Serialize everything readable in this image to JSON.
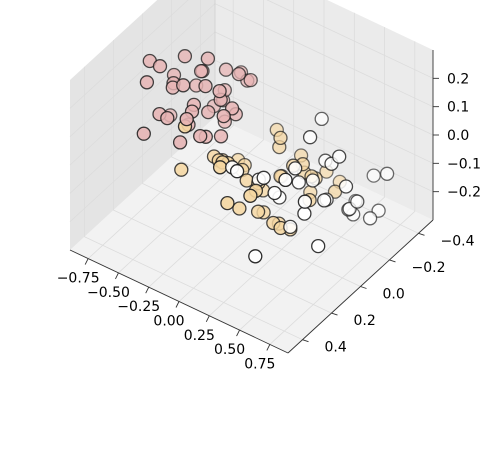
{
  "chart_data": {
    "type": "scatter",
    "projection": "3d",
    "title": "",
    "xlabel": "",
    "ylabel": "",
    "zlabel": "",
    "grid": true,
    "legend": "none",
    "xlim": [
      -0.9,
      0.9
    ],
    "ylim": [
      -0.5,
      0.5
    ],
    "zlim": [
      -0.3,
      0.3
    ],
    "x_ticks": [
      -0.75,
      -0.5,
      -0.25,
      0.0,
      0.25,
      0.5,
      0.75
    ],
    "x_tick_labels": [
      "−0.75",
      "−0.50",
      "−0.25",
      "0.00",
      "0.25",
      "0.50",
      "0.75"
    ],
    "y_ticks": [
      -0.4,
      -0.2,
      0.0,
      0.2,
      0.4
    ],
    "y_tick_labels": [
      "−0.4",
      "−0.2",
      "0.0",
      "0.2",
      "0.4"
    ],
    "z_ticks": [
      -0.2,
      -0.1,
      0.0,
      0.1,
      0.2
    ],
    "z_tick_labels": [
      "−0.2",
      "−0.1",
      "0.0",
      "0.1",
      "0.2"
    ],
    "colors": {
      "cluster_a": "#e7b3b3",
      "cluster_b": "#f5d6a0",
      "cluster_c": "#ffffff",
      "marker_edge": "#1a1a1a",
      "pane": "#f2f2f2",
      "grid": "#dcdcdc"
    },
    "series": [
      {
        "color": "#e7b3b3",
        "points": [
          [
            -0.78,
            0.05,
            0.18
          ],
          [
            -0.72,
            0.12,
            0.15
          ],
          [
            -0.7,
            -0.05,
            0.1
          ],
          [
            -0.66,
            0.08,
            0.2
          ],
          [
            -0.62,
            0.02,
            0.12
          ],
          [
            -0.6,
            -0.12,
            0.05
          ],
          [
            -0.58,
            0.15,
            0.08
          ],
          [
            -0.55,
            0.0,
            0.22
          ],
          [
            -0.53,
            0.1,
            0.16
          ],
          [
            -0.5,
            -0.08,
            0.14
          ],
          [
            -0.48,
            0.18,
            0.1
          ],
          [
            -0.46,
            0.05,
            0.02
          ],
          [
            -0.44,
            -0.02,
            0.18
          ],
          [
            -0.42,
            0.12,
            0.2
          ],
          [
            -0.4,
            -0.15,
            0.06
          ],
          [
            -0.38,
            0.08,
            0.12
          ],
          [
            -0.36,
            0.0,
            0.25
          ],
          [
            -0.35,
            0.2,
            0.05
          ],
          [
            -0.33,
            -0.1,
            0.17
          ],
          [
            -0.31,
            0.04,
            0.09
          ],
          [
            -0.3,
            0.16,
            0.15
          ],
          [
            -0.28,
            -0.05,
            0.02
          ],
          [
            -0.26,
            0.1,
            0.22
          ],
          [
            -0.25,
            -0.18,
            0.11
          ],
          [
            -0.23,
            0.02,
            0.14
          ],
          [
            -0.21,
            0.14,
            0.07
          ],
          [
            -0.2,
            -0.08,
            0.19
          ],
          [
            -0.18,
            0.06,
            0.04
          ],
          [
            -0.16,
            0.22,
            0.12
          ],
          [
            -0.15,
            -0.12,
            0.16
          ],
          [
            -0.13,
            0.0,
            0.1
          ],
          [
            -0.12,
            0.12,
            0.24
          ],
          [
            -0.55,
            -0.2,
            -0.05
          ],
          [
            -0.45,
            -0.18,
            0.0
          ],
          [
            -0.65,
            0.2,
            0.02
          ],
          [
            -0.1,
            0.05,
            0.15
          ],
          [
            -0.35,
            -0.22,
            0.1
          ],
          [
            -0.05,
            0.15,
            0.18
          ],
          [
            -0.85,
            -0.15,
            -0.12
          ],
          [
            -0.2,
            0.28,
            0.2
          ]
        ]
      },
      {
        "color": "#f5d6a0",
        "points": [
          [
            -0.3,
            -0.05,
            -0.12
          ],
          [
            -0.25,
            0.05,
            -0.05
          ],
          [
            -0.2,
            -0.12,
            -0.15
          ],
          [
            -0.15,
            0.1,
            -0.02
          ],
          [
            -0.1,
            -0.02,
            -0.1
          ],
          [
            -0.05,
            0.12,
            0.0
          ],
          [
            0.0,
            -0.08,
            -0.18
          ],
          [
            0.02,
            0.05,
            -0.08
          ],
          [
            0.05,
            -0.15,
            -0.05
          ],
          [
            0.08,
            0.15,
            -0.12
          ],
          [
            0.1,
            0.0,
            -0.2
          ],
          [
            0.12,
            -0.1,
            0.02
          ],
          [
            0.15,
            0.08,
            -0.15
          ],
          [
            0.18,
            -0.05,
            -0.08
          ],
          [
            0.2,
            0.12,
            -0.02
          ],
          [
            0.22,
            -0.18,
            -0.12
          ],
          [
            0.25,
            0.02,
            -0.2
          ],
          [
            0.28,
            -0.12,
            -0.05
          ],
          [
            0.3,
            0.1,
            -0.15
          ],
          [
            0.32,
            -0.02,
            0.0
          ],
          [
            0.35,
            -0.15,
            -0.1
          ],
          [
            0.38,
            0.05,
            -0.18
          ],
          [
            0.4,
            -0.08,
            -0.05
          ],
          [
            0.42,
            0.15,
            -0.12
          ],
          [
            -0.05,
            -0.25,
            -0.22
          ],
          [
            0.05,
            -0.3,
            -0.15
          ],
          [
            0.15,
            -0.28,
            -0.25
          ],
          [
            -0.4,
            0.15,
            -0.08
          ],
          [
            -0.35,
            -0.2,
            -0.2
          ],
          [
            0.0,
            0.2,
            0.05
          ],
          [
            0.1,
            0.25,
            -0.05
          ],
          [
            0.3,
            0.22,
            0.02
          ],
          [
            0.45,
            -0.2,
            -0.15
          ],
          [
            -0.15,
            -0.3,
            -0.1
          ],
          [
            0.2,
            -0.35,
            -0.2
          ],
          [
            0.48,
            0.0,
            -0.08
          ],
          [
            0.1,
            0.3,
            0.1
          ],
          [
            -0.25,
            0.25,
            0.15
          ],
          [
            0.35,
            0.3,
            0.05
          ],
          [
            0.25,
            -0.4,
            -0.25
          ]
        ]
      },
      {
        "color": "#ffffff",
        "points": [
          [
            0.3,
            0.2,
            0.05
          ],
          [
            0.35,
            0.1,
            -0.05
          ],
          [
            0.4,
            0.25,
            0.1
          ],
          [
            0.45,
            0.05,
            0.0
          ],
          [
            0.5,
            0.15,
            -0.1
          ],
          [
            0.55,
            -0.05,
            0.05
          ],
          [
            0.6,
            0.2,
            0.15
          ],
          [
            0.62,
            0.0,
            -0.05
          ],
          [
            0.65,
            0.12,
            0.08
          ],
          [
            0.68,
            -0.1,
            -0.12
          ],
          [
            0.7,
            0.22,
            0.02
          ],
          [
            0.72,
            0.05,
            0.12
          ],
          [
            0.75,
            -0.05,
            -0.08
          ],
          [
            0.78,
            0.15,
            0.05
          ],
          [
            0.8,
            -0.15,
            -0.15
          ],
          [
            0.82,
            0.08,
            0.18
          ],
          [
            0.85,
            -0.02,
            -0.02
          ],
          [
            0.55,
            0.3,
            0.1
          ],
          [
            0.6,
            -0.2,
            -0.2
          ],
          [
            0.7,
            0.35,
            0.2
          ],
          [
            0.75,
            -0.25,
            -0.18
          ],
          [
            0.8,
            0.3,
            0.12
          ],
          [
            0.5,
            -0.3,
            -0.22
          ],
          [
            0.65,
            -0.3,
            -0.1
          ],
          [
            0.85,
            0.25,
            -0.05
          ],
          [
            0.9,
            0.1,
            0.1
          ],
          [
            0.4,
            -0.15,
            0.12
          ],
          [
            0.45,
            0.35,
            -0.12
          ],
          [
            0.88,
            -0.2,
            0.0
          ],
          [
            0.58,
            0.08,
            0.2
          ],
          [
            0.3,
            0.35,
            0.15
          ],
          [
            0.2,
            0.3,
            0.12
          ]
        ]
      }
    ]
  }
}
